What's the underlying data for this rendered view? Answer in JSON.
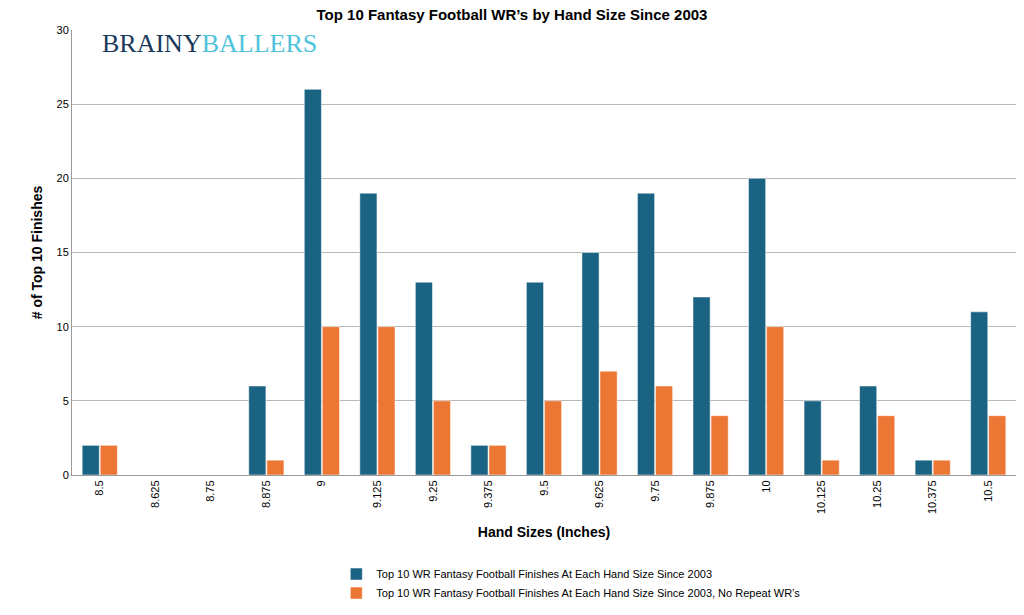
{
  "chart_data": {
    "type": "bar",
    "title": "Top 10 Fantasy Football WR’s by Hand Size Since 2003",
    "x_label": "Hand Sizes (Inches)",
    "y_label": "# of Top 10 Finishes",
    "categories": [
      "8.5",
      "8.625",
      "8.75",
      "8.875",
      "9",
      "9.125",
      "9.25",
      "9.375",
      "9.5",
      "9.625",
      "9.75",
      "9.875",
      "10",
      "10.125",
      "10.25",
      "10.375",
      "10.5"
    ],
    "series": [
      {
        "name": "Top 10 WR Fantasy Football Finishes At Each Hand Size Since 2003",
        "color": "#1b6383",
        "values": [
          2,
          0,
          0,
          6,
          26,
          19,
          13,
          2,
          13,
          15,
          19,
          12,
          20,
          5,
          6,
          1,
          11
        ]
      },
      {
        "name": "Top 10 WR Fantasy Football Finishes At Each Hand Size Since 2003, No Repeat WR’s",
        "color": "#ec7634",
        "values": [
          2,
          0,
          0,
          1,
          10,
          10,
          5,
          2,
          5,
          7,
          6,
          4,
          10,
          1,
          4,
          1,
          4
        ]
      }
    ],
    "ylim": [
      0,
      30
    ],
    "yticks": [
      0,
      5,
      10,
      15,
      20,
      25,
      30
    ],
    "grid": true,
    "legend": "bottom",
    "annotations": [
      "BRAINY",
      "BALLERS"
    ]
  }
}
